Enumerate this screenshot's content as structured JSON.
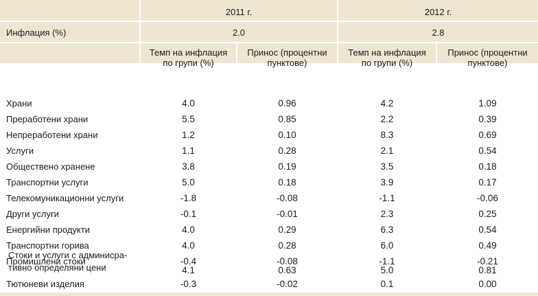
{
  "header": {
    "year_2011": "2011 г.",
    "year_2012": "2012 г.",
    "inflation_label": "Инфлация (%)",
    "inflation_2011": "2.0",
    "inflation_2012": "2.8",
    "col_rate_line1": "Темп на инфлация",
    "col_rate_line2": "по групи (%)",
    "col_contrib_line1": "Принос (процентни",
    "col_contrib_line2": "пунктове)"
  },
  "rows": [
    {
      "label": "Храни",
      "r2011": "4.0",
      "c2011": "0.96",
      "r2012": "4.2",
      "c2012": "1.09"
    },
    {
      "label": "Преработени храни",
      "r2011": "5.5",
      "c2011": "0.85",
      "r2012": "2.2",
      "c2012": "0.39"
    },
    {
      "label": "Непреработени храни",
      "r2011": "1.2",
      "c2011": "0.10",
      "r2012": "8.3",
      "c2012": "0.69"
    },
    {
      "label": "Услуги",
      "r2011": "1.1",
      "c2011": "0.28",
      "r2012": "2.1",
      "c2012": "0.54"
    },
    {
      "label": "Обществено хранене",
      "r2011": "3.8",
      "c2011": "0.19",
      "r2012": "3.5",
      "c2012": "0.18"
    },
    {
      "label": "Транспортни услуги",
      "r2011": "5.0",
      "c2011": "0.18",
      "r2012": "3.9",
      "c2012": "0.17"
    },
    {
      "label": "Телекомуникационни услуги",
      "r2011": "-1.8",
      "c2011": "-0.08",
      "r2012": "-1.1",
      "c2012": "-0.06"
    },
    {
      "label": "Други услуги",
      "r2011": "-0.1",
      "c2011": "-0.01",
      "r2012": "2.3",
      "c2012": "0.25"
    },
    {
      "label": "Енергийни продукти",
      "r2011": "4.0",
      "c2011": "0.29",
      "r2012": "6.3",
      "c2012": "0.54"
    },
    {
      "label": "Транспортни горива",
      "r2011": "4.0",
      "c2011": "0.28",
      "r2012": "6.0",
      "c2012": "0.49"
    },
    {
      "label": "Промишлени стоки",
      "r2011": "-0.4",
      "c2011": "-0.08",
      "r2012": "-1.1",
      "c2012": "-0.21"
    },
    {
      "label_line1": "Стоки и услуги с админисра-",
      "label_line2": "тивно определяни цени",
      "r2011": "4.1",
      "c2011": "0.63",
      "r2012": "5.0",
      "c2012": "0.81"
    },
    {
      "label": "Тютюневи изделия",
      "r2011": "-0.3",
      "c2011": "-0.02",
      "r2012": "0.1",
      "c2012": "0.00"
    }
  ]
}
